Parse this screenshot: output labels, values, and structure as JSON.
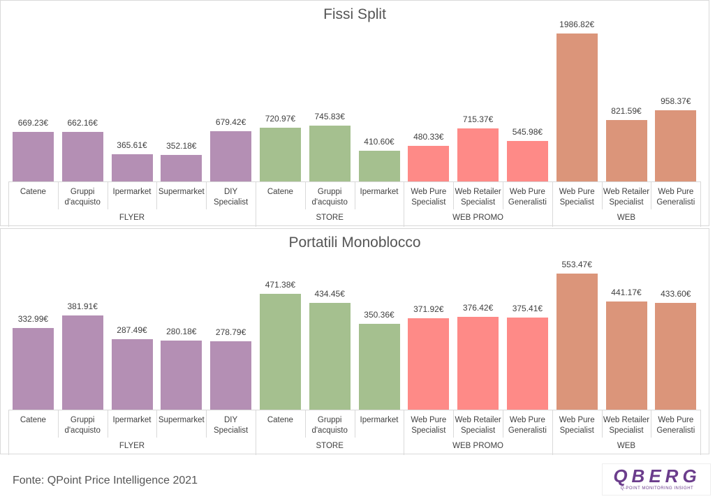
{
  "chart_data": [
    {
      "type": "bar",
      "title": "Fissi Split",
      "groups": [
        {
          "name": "FLYER",
          "color": "#b48fb4",
          "categories": [
            "Catene",
            "Gruppi d'acquisto",
            "Ipermarket",
            "Supermarket",
            "DIY Specialist"
          ],
          "values": [
            669.23,
            662.16,
            365.61,
            352.18,
            679.42
          ],
          "value_labels": [
            "669.23€",
            "662.16€",
            "365.61€",
            "352.18€",
            "679.42€"
          ]
        },
        {
          "name": "STORE",
          "color": "#a5c08f",
          "categories": [
            "Catene",
            "Gruppi d'acquisto",
            "Ipermarket"
          ],
          "values": [
            720.97,
            745.83,
            410.6
          ],
          "value_labels": [
            "720.97€",
            "745.83€",
            "410.60€"
          ]
        },
        {
          "name": "WEB PROMO",
          "color": "#fe8a87",
          "categories": [
            "Web Pure Specialist",
            "Web Retailer Specialist",
            "Web Pure Generalisti"
          ],
          "values": [
            480.33,
            715.37,
            545.98
          ],
          "value_labels": [
            "480.33€",
            "715.37€",
            "545.98€"
          ]
        },
        {
          "name": "WEB",
          "color": "#db957a",
          "categories": [
            "Web Pure Specialist",
            "Web Retailer Specialist",
            "Web Pure Generalisti"
          ],
          "values": [
            1986.82,
            821.59,
            958.37
          ],
          "value_labels": [
            "1986.82€",
            "821.59€",
            "958.37€"
          ]
        }
      ]
    },
    {
      "type": "bar",
      "title": "Portatili Monoblocco",
      "groups": [
        {
          "name": "FLYER",
          "color": "#b48fb4",
          "categories": [
            "Catene",
            "Gruppi d'acquisto",
            "Ipermarket",
            "Supermarket",
            "DIY Specialist"
          ],
          "values": [
            332.99,
            381.91,
            287.49,
            280.18,
            278.79
          ],
          "value_labels": [
            "332.99€",
            "381.91€",
            "287.49€",
            "280.18€",
            "278.79€"
          ]
        },
        {
          "name": "STORE",
          "color": "#a5c08f",
          "categories": [
            "Catene",
            "Gruppi d'acquisto",
            "Ipermarket"
          ],
          "values": [
            471.38,
            434.45,
            350.36
          ],
          "value_labels": [
            "471.38€",
            "434.45€",
            "350.36€"
          ]
        },
        {
          "name": "WEB PROMO",
          "color": "#fe8a87",
          "categories": [
            "Web Pure Specialist",
            "Web Retailer Specialist",
            "Web Pure Generalisti"
          ],
          "values": [
            371.92,
            376.42,
            375.41
          ],
          "value_labels": [
            "371.92€",
            "376.42€",
            "375.41€"
          ]
        },
        {
          "name": "WEB",
          "color": "#db957a",
          "categories": [
            "Web Pure Specialist",
            "Web Retailer Specialist",
            "Web Pure Generalisti"
          ],
          "values": [
            553.47,
            441.17,
            433.6
          ],
          "value_labels": [
            "553.47€",
            "441.17€",
            "433.60€"
          ]
        }
      ]
    }
  ],
  "source": "Fonte: QPoint Price Intelligence 2021",
  "logo": {
    "name": "QBERG",
    "tagline": "Q-POINT MONITORING INSIGHT"
  }
}
